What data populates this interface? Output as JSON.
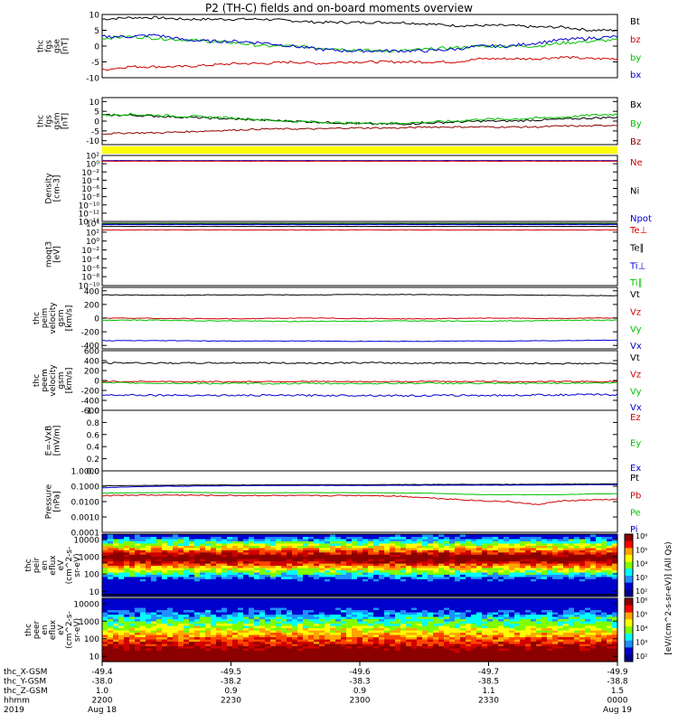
{
  "title": "P2 (TH-C) fields and on-board moments overview",
  "panels": [
    {
      "id": "fgs_gse",
      "ylabel": [
        "thc",
        "fgs",
        "gse",
        "[nT]"
      ],
      "type": "line",
      "scale": "linear",
      "ylim": [
        -10,
        10
      ],
      "ticks": [
        "10",
        "5",
        "0",
        "-5",
        "-10"
      ],
      "tickvals": [
        10,
        5,
        0,
        -5,
        -10
      ],
      "legend": [
        {
          "text": "Bt",
          "color": "#000000"
        },
        {
          "text": "bz",
          "color": "#d00000"
        },
        {
          "text": "by",
          "color": "#00c000"
        },
        {
          "text": "bx",
          "color": "#0000d0"
        }
      ],
      "series": [
        {
          "name": "Bt",
          "color": "#000000",
          "base": [
            8.5,
            9,
            9,
            8.5,
            8.5,
            8.5,
            8.5,
            8,
            7.5,
            7.5,
            7.5,
            7.5,
            7,
            6.5,
            6.5,
            6.5,
            6,
            6,
            5,
            5
          ],
          "noise": 0.4
        },
        {
          "name": "bz",
          "color": "#d00000",
          "base": [
            -7.5,
            -6.5,
            -6.5,
            -6.5,
            -6,
            -5.5,
            -5.5,
            -5,
            -5.5,
            -5,
            -5,
            -5,
            -5,
            -5,
            -4,
            -4,
            -4,
            -3.5,
            -4,
            -4
          ],
          "noise": 0.4
        },
        {
          "name": "by",
          "color": "#00c000",
          "base": [
            2.5,
            3,
            2.5,
            2,
            1.5,
            1,
            0,
            0,
            -0.5,
            -1,
            -1.5,
            -1.5,
            -1,
            -0.5,
            0,
            0,
            0,
            1,
            1.5,
            2
          ],
          "noise": 0.5
        },
        {
          "name": "bx",
          "color": "#0000d0",
          "base": [
            3,
            3,
            3.5,
            2,
            1.5,
            1.5,
            1,
            0,
            -1,
            -1.5,
            -1.5,
            -1.5,
            -1.5,
            -1,
            0,
            0,
            1,
            2,
            2.5,
            3
          ],
          "noise": 0.5
        }
      ]
    },
    {
      "id": "fgs_gsm",
      "ylabel": [
        "thc",
        "fgs",
        "gsm",
        "[nT]"
      ],
      "type": "line",
      "scale": "linear",
      "ylim": [
        -12,
        12
      ],
      "ticks": [
        "10",
        "5",
        "0",
        "-5",
        "-10"
      ],
      "tickvals": [
        10,
        5,
        0,
        -5,
        -10
      ],
      "legend": [
        {
          "text": "Bx",
          "color": "#000000"
        },
        {
          "text": "By",
          "color": "#00c000"
        },
        {
          "text": "Bz",
          "color": "#8b0000"
        }
      ],
      "series": [
        {
          "name": "Bx",
          "color": "#000000",
          "base": [
            3,
            3,
            2.5,
            2,
            1.5,
            1,
            0.5,
            0,
            -0.5,
            -1,
            -1.5,
            -1.5,
            -1,
            -0.5,
            0,
            0,
            0.5,
            1,
            1.5,
            2
          ],
          "noise": 0.5
        },
        {
          "name": "By",
          "color": "#00c000",
          "base": [
            3,
            3.5,
            3,
            2.5,
            2,
            1.5,
            0.5,
            0,
            -0.5,
            -1,
            -1,
            -1,
            -0.5,
            0,
            1,
            1,
            1.5,
            2,
            3,
            3.5
          ],
          "noise": 0.6
        },
        {
          "name": "Bz",
          "color": "#8b0000",
          "base": [
            -6.5,
            -6,
            -6,
            -5.5,
            -5,
            -4.5,
            -4,
            -4,
            -4,
            -3.5,
            -3.5,
            -3.5,
            -3,
            -3,
            -3,
            -3,
            -3,
            -2.5,
            -2.5,
            -2
          ],
          "noise": 0.4
        }
      ]
    },
    {
      "id": "density",
      "ylabel": [
        "Density",
        "[cm-3]"
      ],
      "type": "log",
      "scale": "log",
      "ylim": [
        -14,
        2
      ],
      "ticks": [
        "10²",
        "10⁰",
        "10⁻²",
        "10⁻⁴",
        "10⁻⁶",
        "10⁻⁸",
        "10⁻¹⁰",
        "10⁻¹²",
        "10⁻¹⁴"
      ],
      "tickvals": [
        2,
        0,
        -2,
        -4,
        -6,
        -8,
        -10,
        -12,
        -14
      ],
      "legend": [
        {
          "text": "Ne",
          "color": "#d00000"
        },
        {
          "text": "Ni",
          "color": "#000000"
        },
        {
          "text": "Npot",
          "color": "#0000d0"
        }
      ],
      "series": [
        {
          "name": "Ni",
          "color": "#000000",
          "base": [
            0.7
          ],
          "noise": 0.02
        },
        {
          "name": "Npot",
          "color": "#0000d0",
          "base": [
            0.75
          ],
          "noise": 0.02
        },
        {
          "name": "Ne",
          "color": "#d00000",
          "base": [
            0.6
          ],
          "noise": 0.02
        }
      ]
    },
    {
      "id": "temp",
      "ylabel": [
        "moqt3",
        "[eV]"
      ],
      "type": "log",
      "scale": "log",
      "ylim": [
        -10,
        4
      ],
      "ticks": [
        "10⁴",
        "10²",
        "10⁰",
        "10⁻²",
        "10⁻⁴",
        "10⁻⁶",
        "10⁻⁸",
        "10⁻¹⁰"
      ],
      "tickvals": [
        4,
        2,
        0,
        -2,
        -4,
        -6,
        -8,
        -10
      ],
      "legend": [
        {
          "text": "Te⊥",
          "color": "#d00000"
        },
        {
          "text": "Te∥",
          "color": "#000000"
        },
        {
          "text": "Ti⊥",
          "color": "#0000d0"
        },
        {
          "text": "Ti∥",
          "color": "#00c000"
        }
      ],
      "series": [
        {
          "name": "Ti∥",
          "color": "#00c000",
          "base": [
            3.8
          ],
          "noise": 0.02
        },
        {
          "name": "Ti⊥",
          "color": "#0000d0",
          "base": [
            3.7
          ],
          "noise": 0.02
        },
        {
          "name": "Te∥",
          "color": "#000000",
          "base": [
            3.3
          ],
          "noise": 0.02
        },
        {
          "name": "Te⊥",
          "color": "#d00000",
          "base": [
            2.5
          ],
          "noise": 0.05
        }
      ]
    },
    {
      "id": "peim_v",
      "ylabel": [
        "thc",
        "peim",
        "velocity",
        "gsm",
        "[km/s]"
      ],
      "type": "line",
      "scale": "linear",
      "ylim": [
        -450,
        450
      ],
      "ticks": [
        "400",
        "200",
        "0",
        "-200",
        "-400"
      ],
      "tickvals": [
        400,
        200,
        0,
        -200,
        -400
      ],
      "legend": [
        {
          "text": "Vt",
          "color": "#000000"
        },
        {
          "text": "Vz",
          "color": "#d00000"
        },
        {
          "text": "Vy",
          "color": "#00c000"
        },
        {
          "text": "Vx",
          "color": "#0000d0"
        }
      ],
      "series": [
        {
          "name": "Vt",
          "color": "#000000",
          "base": [
            340,
            340,
            335,
            335,
            340,
            340,
            340,
            340,
            340,
            345,
            345,
            345,
            345,
            340,
            340,
            340,
            335,
            335,
            330,
            330
          ],
          "noise": 4
        },
        {
          "name": "Vz",
          "color": "#d00000",
          "base": [
            0,
            0,
            -5,
            -5,
            -10,
            -10,
            -5,
            0,
            0,
            -5,
            -5,
            -10,
            -10,
            -5,
            0,
            0,
            -5,
            -5,
            0,
            0
          ],
          "noise": 5
        },
        {
          "name": "Vy",
          "color": "#00c000",
          "base": [
            -30,
            -30,
            -30,
            -35,
            -40,
            -40,
            -45,
            -50,
            -45,
            -45,
            -45,
            -40,
            -40,
            -40,
            -45,
            -40,
            -40,
            -30,
            -30,
            -30
          ],
          "noise": 6
        },
        {
          "name": "Vx",
          "color": "#0000d0",
          "base": [
            -330,
            -330,
            -330,
            -330,
            -335,
            -335,
            -335,
            -335,
            -335,
            -340,
            -340,
            -340,
            -340,
            -335,
            -335,
            -335,
            -330,
            -330,
            -325,
            -325
          ],
          "noise": 4
        }
      ]
    },
    {
      "id": "peem_v",
      "ylabel": [
        "thc",
        "peem",
        "velocity",
        "gsm",
        "[km/s]"
      ],
      "type": "line",
      "scale": "linear",
      "ylim": [
        -600,
        600
      ],
      "ticks": [
        "600",
        "400",
        "200",
        "0",
        "-200",
        "-400",
        "-600"
      ],
      "tickvals": [
        600,
        400,
        200,
        0,
        -200,
        -400,
        -600
      ],
      "legend": [
        {
          "text": "Vt",
          "color": "#000000"
        },
        {
          "text": "Vz",
          "color": "#d00000"
        },
        {
          "text": "Vy",
          "color": "#00c000"
        },
        {
          "text": "Vx",
          "color": "#0000d0"
        }
      ],
      "series": [
        {
          "name": "Vt",
          "color": "#000000",
          "base": [
            350,
            355,
            350,
            350,
            350,
            355,
            355,
            350,
            350,
            355,
            355,
            350,
            350,
            355,
            350,
            345,
            345,
            340,
            340,
            340
          ],
          "noise": 15
        },
        {
          "name": "Vz",
          "color": "#d00000",
          "base": [
            -20,
            -20,
            -20,
            -25,
            -25,
            -25,
            -20,
            -20,
            -20,
            -25,
            -25,
            -25,
            -20,
            -20,
            -20,
            -25,
            -25,
            -20,
            -20,
            -20
          ],
          "noise": 12
        },
        {
          "name": "Vy",
          "color": "#00c000",
          "base": [
            -50,
            -50,
            -55,
            -55,
            -60,
            -60,
            -60,
            -60,
            -60,
            -60,
            -60,
            -55,
            -55,
            -55,
            -60,
            -60,
            -55,
            -50,
            -50,
            -50
          ],
          "noise": 15
        },
        {
          "name": "Vx",
          "color": "#0000d0",
          "base": [
            -290,
            -290,
            -295,
            -295,
            -300,
            -300,
            -300,
            -300,
            -300,
            -300,
            -300,
            -305,
            -305,
            -300,
            -300,
            -300,
            -290,
            -290,
            -285,
            -285
          ],
          "noise": 18
        }
      ]
    },
    {
      "id": "efield",
      "ylabel": [
        "E=-VxB",
        "[mV/m]"
      ],
      "type": "empty",
      "scale": "linear",
      "ylim": [
        0,
        1
      ],
      "ticks": [
        "1.0",
        "0.8",
        "0.6",
        "0.4",
        "0.2",
        "0.0"
      ],
      "tickvals": [
        1,
        0.8,
        0.6,
        0.4,
        0.2,
        0
      ],
      "legend": [
        {
          "text": "Ez",
          "color": "#d00000"
        },
        {
          "text": "Ey",
          "color": "#00c000"
        },
        {
          "text": "Ex",
          "color": "#0000d0"
        }
      ],
      "series": []
    },
    {
      "id": "pressure",
      "ylabel": [
        "Pressure",
        "[nPa]"
      ],
      "type": "log",
      "scale": "log",
      "ylim": [
        -4,
        0
      ],
      "ticks": [
        "1.0000",
        "0.1000",
        "0.0100",
        "0.0010",
        "0.0001"
      ],
      "tickvals": [
        0,
        -1,
        -2,
        -3,
        -4
      ],
      "legend": [
        {
          "text": "Pt",
          "color": "#000000"
        },
        {
          "text": "Pb",
          "color": "#d00000"
        },
        {
          "text": "Pe",
          "color": "#00c000"
        },
        {
          "text": "Pi",
          "color": "#0000d0"
        }
      ],
      "series": [
        {
          "name": "Pt",
          "color": "#000000",
          "base": [
            -0.98,
            -0.96,
            -0.94,
            -0.93,
            -0.92,
            -0.92,
            -0.91,
            -0.9,
            -0.9,
            -0.9,
            -0.9,
            -0.89,
            -0.89,
            -0.88,
            -0.88,
            -0.88,
            -0.87,
            -0.86,
            -0.85,
            -0.85
          ],
          "noise": 0.01
        },
        {
          "name": "Pi",
          "color": "#0000d0",
          "base": [
            -1.1,
            -1.05,
            -1.0,
            -1.0,
            -0.98,
            -0.97,
            -0.96,
            -0.95,
            -0.95,
            -0.95,
            -0.95,
            -0.94,
            -0.94,
            -0.93,
            -0.93,
            -0.93,
            -0.92,
            -0.92,
            -0.9,
            -0.9
          ],
          "noise": 0.01
        },
        {
          "name": "Pe",
          "color": "#00c000",
          "base": [
            -1.45,
            -1.43,
            -1.42,
            -1.4,
            -1.42,
            -1.43,
            -1.43,
            -1.42,
            -1.42,
            -1.42,
            -1.42,
            -1.45,
            -1.45,
            -1.5,
            -1.55,
            -1.55,
            -1.55,
            -1.55,
            -1.5,
            -1.5
          ],
          "noise": 0.01
        },
        {
          "name": "Pb",
          "color": "#d00000",
          "base": [
            -1.6,
            -1.58,
            -1.58,
            -1.58,
            -1.6,
            -1.6,
            -1.6,
            -1.62,
            -1.62,
            -1.6,
            -1.6,
            -1.65,
            -1.75,
            -1.85,
            -1.95,
            -2.0,
            -2.2,
            -1.95,
            -1.9,
            -1.85
          ],
          "noise": 0.04
        }
      ]
    },
    {
      "id": "peir_spec",
      "ylabel": [
        "thc",
        "peir",
        "en",
        "eflux",
        "eV",
        "(cm^2-s-",
        "sr-eV)"
      ],
      "type": "spectrogram",
      "scale": "log",
      "ylim": [
        0.7,
        4.3
      ],
      "ticks": [
        "10000",
        "1000",
        "100",
        "10"
      ],
      "tickvals": [
        4,
        3,
        2,
        1
      ],
      "legend": [],
      "series": []
    },
    {
      "id": "peer_spec",
      "ylabel": [
        "thc",
        "peer",
        "en",
        "eflux",
        "eV",
        "(cm^2-s-",
        "sr-eV)"
      ],
      "type": "spectrogram",
      "scale": "log",
      "ylim": [
        0.7,
        4.3
      ],
      "ticks": [
        "10000",
        "1000",
        "100",
        "10"
      ],
      "tickvals": [
        4,
        3,
        2,
        1
      ],
      "legend": [],
      "series": []
    }
  ],
  "colorbar": {
    "labels_top": [
      "10⁶",
      "10⁵",
      "10⁴",
      "10³",
      "10²"
    ],
    "labels_bot": [
      "10⁶",
      "10⁵",
      "10⁴",
      "10³",
      "10²"
    ],
    "title": "[eV/(cm^2-s-sr-eV)] (All Qs)"
  },
  "xaxis": {
    "rows": [
      {
        "label": "thc_X-GSM",
        "values": [
          "-49.4",
          "-49.5",
          "-49.6",
          "-49.7",
          "-49.9"
        ]
      },
      {
        "label": "thc_Y-GSM",
        "values": [
          "-38.0",
          "-38.2",
          "-38.3",
          "-38.5",
          "-38.8"
        ]
      },
      {
        "label": "thc_Z-GSM",
        "values": [
          "1.0",
          "0.9",
          "0.9",
          "1.1",
          "1.5"
        ]
      },
      {
        "label": "hhmm",
        "values": [
          "2200",
          "2230",
          "2300",
          "2330",
          "0000"
        ]
      },
      {
        "label": "2019",
        "values": [
          "Aug 18",
          "",
          "",
          "",
          "Aug 19"
        ]
      }
    ]
  }
}
